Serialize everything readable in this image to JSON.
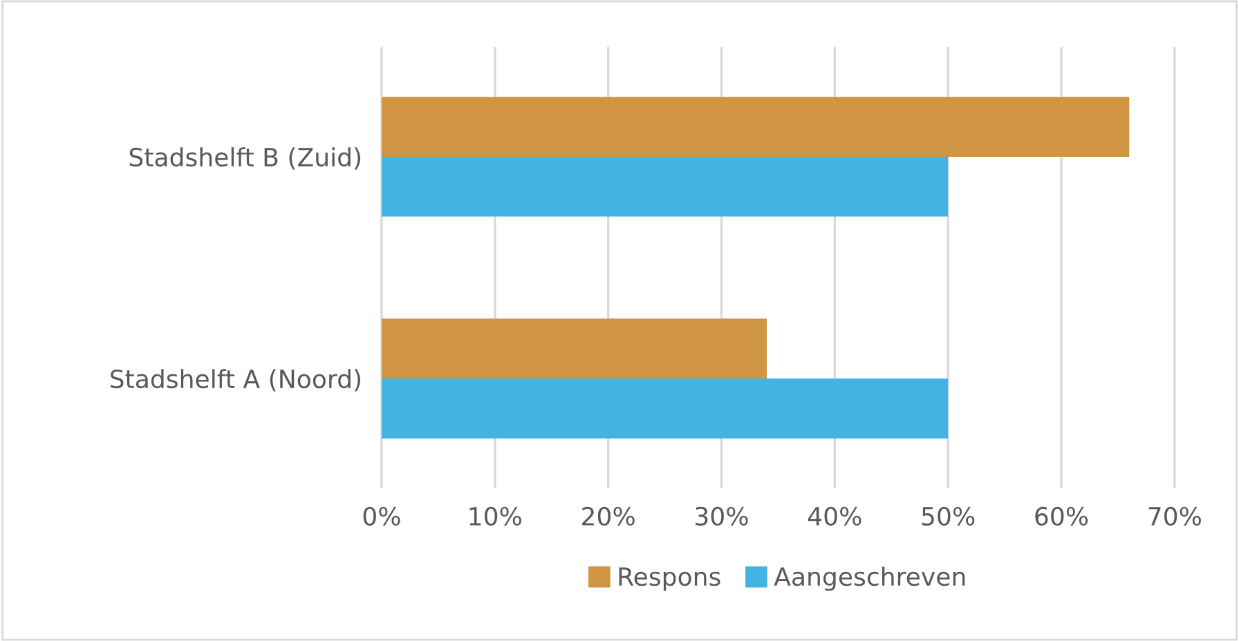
{
  "chart_data": {
    "type": "bar",
    "orientation": "horizontal",
    "categories": [
      "Stadshelft B (Zuid)",
      "Stadshelft A (Noord)"
    ],
    "series": [
      {
        "name": "Respons",
        "color": "#d09543",
        "values": [
          66,
          34
        ]
      },
      {
        "name": "Aangeschreven",
        "color": "#41b4e4",
        "values": [
          50,
          50
        ]
      }
    ],
    "xlim": [
      0,
      70
    ],
    "xticks": [
      {
        "value": 0,
        "label": "0%"
      },
      {
        "value": 10,
        "label": "10%"
      },
      {
        "value": 20,
        "label": "20%"
      },
      {
        "value": 30,
        "label": "30%"
      },
      {
        "value": 40,
        "label": "40%"
      },
      {
        "value": 50,
        "label": "50%"
      },
      {
        "value": 60,
        "label": "60%"
      },
      {
        "value": 70,
        "label": "70%"
      }
    ],
    "grid": "x",
    "legend": "bottom"
  }
}
